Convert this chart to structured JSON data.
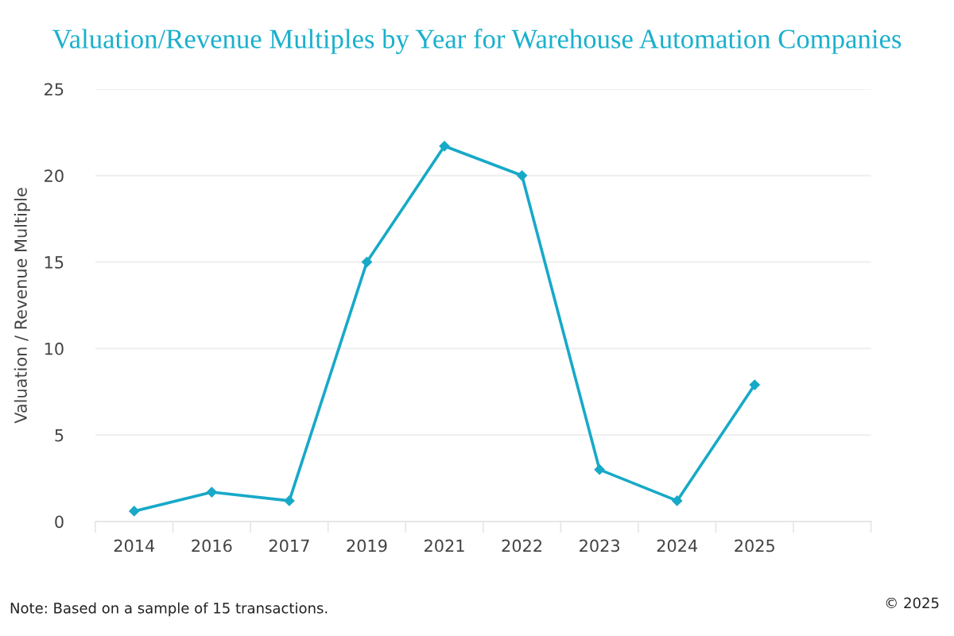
{
  "chart_data": {
    "type": "line",
    "title": "Valuation/Revenue Multiples by Year for Warehouse Automation Companies",
    "ylabel": "Valuation / Revenue Multiple",
    "categories": [
      "2014",
      "2016",
      "2017",
      "2019",
      "2021",
      "2022",
      "2023",
      "2024",
      "2025",
      null
    ],
    "series": [
      {
        "color": "#17a9c8",
        "values": [
          0.6,
          1.7,
          1.2,
          15.0,
          21.7,
          20.0,
          3.0,
          1.2,
          7.9,
          null
        ]
      }
    ],
    "ylim": [
      0,
      25
    ],
    "yticks": [
      0,
      5,
      10,
      15,
      20,
      25
    ],
    "grid": "y",
    "marker": "diamond",
    "line_style": "solid",
    "annotations": [
      "Note: Based on a sample of 15 transactions.",
      "© 2025"
    ]
  }
}
